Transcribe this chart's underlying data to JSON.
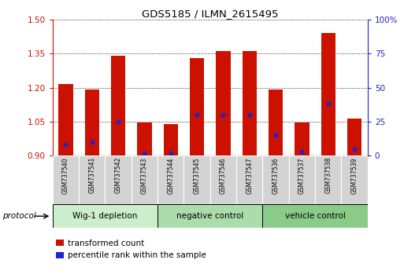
{
  "title": "GDS5185 / ILMN_2615495",
  "samples": [
    "GSM737540",
    "GSM737541",
    "GSM737542",
    "GSM737543",
    "GSM737544",
    "GSM737545",
    "GSM737546",
    "GSM737547",
    "GSM737536",
    "GSM737537",
    "GSM737538",
    "GSM737539"
  ],
  "transformed_count": [
    1.215,
    1.19,
    1.34,
    1.045,
    1.04,
    1.33,
    1.36,
    1.36,
    1.19,
    1.045,
    1.44,
    1.065
  ],
  "percentile_rank": [
    8,
    10,
    25,
    2,
    2,
    30,
    30,
    30,
    15,
    3,
    38,
    5
  ],
  "ylim_left": [
    0.9,
    1.5
  ],
  "ylim_right": [
    0,
    100
  ],
  "yticks_left": [
    0.9,
    1.05,
    1.2,
    1.35,
    1.5
  ],
  "yticks_right": [
    0,
    25,
    50,
    75,
    100
  ],
  "bar_color": "#cc1100",
  "dot_color": "#2222cc",
  "bar_bottom": 0.9,
  "groups": [
    {
      "label": "Wig-1 depletion",
      "start": 0,
      "end": 4
    },
    {
      "label": "negative control",
      "start": 4,
      "end": 8
    },
    {
      "label": "vehicle control",
      "start": 8,
      "end": 12
    }
  ],
  "group_colors": [
    "#cceecc",
    "#aaddaa",
    "#88cc88"
  ],
  "protocol_label": "protocol",
  "legend_red": "transformed count",
  "legend_blue": "percentile rank within the sample",
  "right_axis_color": "#2222cc",
  "left_axis_color": "#cc1100",
  "figsize": [
    5.13,
    3.54
  ],
  "dpi": 100
}
